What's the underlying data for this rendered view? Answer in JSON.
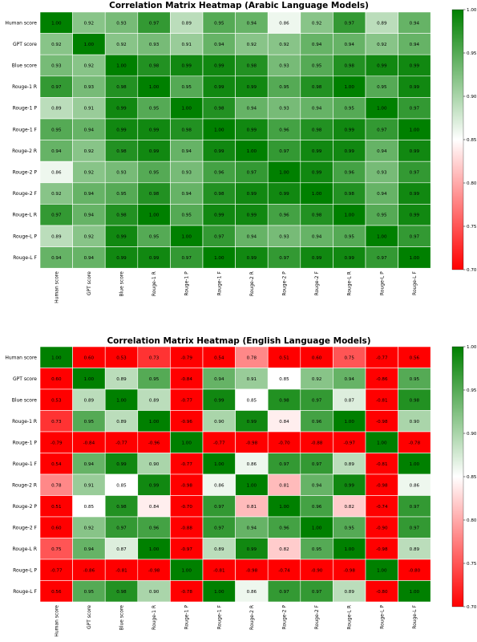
{
  "chart_data": [
    {
      "type": "heatmap",
      "title": "Correlation Matrix Heatmap (Arabic Language Models)",
      "labels": [
        "Human score",
        "GPT score",
        "Blue score",
        "Rouge-1 R",
        "Rouge-1 P",
        "Rouge-1 F",
        "Rouge-2 R",
        "Rouge-2 P",
        "Rouge-2 F",
        "Rouge-L R",
        "Rouge-L P",
        "Rouge-L F"
      ],
      "x_tick_labels": [
        "Human score",
        "GPT score",
        "Blue score",
        "Rouge-1 R",
        "Rouge-1 P",
        "Rouge-1 F",
        "Rouge-2 R",
        "Rouge-2 P",
        "Rouge-2 F",
        "Rouge-L R",
        "Rouge-L P",
        "Rouge-L F"
      ],
      "matrix": [
        [
          1.0,
          0.92,
          0.93,
          0.97,
          0.89,
          0.95,
          0.94,
          0.86,
          0.92,
          0.97,
          0.89,
          0.94
        ],
        [
          0.92,
          1.0,
          0.92,
          0.93,
          0.91,
          0.94,
          0.92,
          0.92,
          0.94,
          0.94,
          0.92,
          0.94
        ],
        [
          0.93,
          0.92,
          1.0,
          0.98,
          0.99,
          0.99,
          0.98,
          0.93,
          0.95,
          0.98,
          0.99,
          0.99
        ],
        [
          0.97,
          0.93,
          0.98,
          1.0,
          0.95,
          0.99,
          0.99,
          0.95,
          0.98,
          1.0,
          0.95,
          0.99
        ],
        [
          0.89,
          0.91,
          0.99,
          0.95,
          1.0,
          0.98,
          0.94,
          0.93,
          0.94,
          0.95,
          1.0,
          0.97
        ],
        [
          0.95,
          0.94,
          0.99,
          0.99,
          0.98,
          1.0,
          0.99,
          0.96,
          0.98,
          0.99,
          0.97,
          1.0
        ],
        [
          0.94,
          0.92,
          0.98,
          0.99,
          0.94,
          0.99,
          1.0,
          0.97,
          0.99,
          0.99,
          0.94,
          0.99
        ],
        [
          0.86,
          0.92,
          0.93,
          0.95,
          0.93,
          0.96,
          0.97,
          1.0,
          0.99,
          0.96,
          0.93,
          0.97
        ],
        [
          0.92,
          0.94,
          0.95,
          0.98,
          0.94,
          0.98,
          0.99,
          0.99,
          1.0,
          0.98,
          0.94,
          0.99
        ],
        [
          0.97,
          0.94,
          0.98,
          1.0,
          0.95,
          0.99,
          0.99,
          0.96,
          0.98,
          1.0,
          0.95,
          0.99
        ],
        [
          0.89,
          0.92,
          0.99,
          0.95,
          1.0,
          0.97,
          0.94,
          0.93,
          0.94,
          0.95,
          1.0,
          0.97
        ],
        [
          0.94,
          0.94,
          0.99,
          0.99,
          0.97,
          1.0,
          0.99,
          0.97,
          0.99,
          0.99,
          0.97,
          1.0
        ]
      ],
      "vmin": 0.7,
      "vmax": 1.0,
      "colorbar_ticks": [
        "0.70",
        "0.75",
        "0.80",
        "0.85",
        "0.90",
        "0.95",
        "1.00"
      ],
      "colormap": [
        "#ff0000",
        "#ffffff",
        "#008000"
      ]
    },
    {
      "type": "heatmap",
      "title": "Correlation Matrix Heatmap (English Language Models)",
      "labels": [
        "Human score",
        "GPT score",
        "Blue score",
        "Rouge-1 R",
        "Rouge-1 P",
        "Rouge-1 F",
        "Rouge-2 R",
        "Rouge-2 P",
        "Rouge-2 F",
        "Rouge-L R",
        "Rouge-L P",
        "Rouge-L F"
      ],
      "x_tick_labels": [
        "Human score",
        "GPT score",
        "Blue score",
        "Rouge-1 R",
        "Rouge-1 P",
        "Rouge-1 F",
        "Rouge-2 R",
        "Rouge-2 P",
        "Rouge-2 F",
        "Rouge-L R",
        "Rouge-L P",
        "Rouge-L F"
      ],
      "matrix": [
        [
          1.0,
          0.6,
          0.53,
          0.73,
          -0.79,
          0.54,
          0.78,
          0.51,
          0.6,
          0.75,
          -0.77,
          0.56
        ],
        [
          0.6,
          1.0,
          0.89,
          0.95,
          -0.84,
          0.94,
          0.91,
          0.85,
          0.92,
          0.94,
          -0.86,
          0.95
        ],
        [
          0.53,
          0.89,
          1.0,
          0.89,
          -0.77,
          0.99,
          0.85,
          0.98,
          0.97,
          0.87,
          -0.81,
          0.98
        ],
        [
          0.73,
          0.95,
          0.89,
          1.0,
          -0.96,
          0.9,
          0.99,
          0.84,
          0.96,
          1.0,
          -0.98,
          0.9
        ],
        [
          -0.79,
          -0.84,
          -0.77,
          -0.96,
          1.0,
          -0.77,
          -0.98,
          -0.7,
          -0.88,
          -0.97,
          1.0,
          -0.78
        ],
        [
          0.54,
          0.94,
          0.99,
          0.9,
          -0.77,
          1.0,
          0.86,
          0.97,
          0.97,
          0.89,
          -0.81,
          1.0
        ],
        [
          0.78,
          0.91,
          0.85,
          0.99,
          -0.98,
          0.86,
          1.0,
          0.81,
          0.94,
          0.99,
          -0.98,
          0.86
        ],
        [
          0.51,
          0.85,
          0.98,
          0.84,
          -0.7,
          0.97,
          0.81,
          1.0,
          0.96,
          0.82,
          -0.74,
          0.97
        ],
        [
          0.6,
          0.92,
          0.97,
          0.96,
          -0.88,
          0.97,
          0.94,
          0.96,
          1.0,
          0.95,
          -0.9,
          0.97
        ],
        [
          0.75,
          0.94,
          0.87,
          1.0,
          -0.97,
          0.89,
          0.99,
          0.82,
          0.95,
          1.0,
          -0.98,
          0.89
        ],
        [
          -0.77,
          -0.86,
          -0.81,
          -0.98,
          1.0,
          -0.81,
          -0.98,
          -0.74,
          -0.9,
          -0.98,
          1.0,
          -0.8
        ],
        [
          0.56,
          0.95,
          0.98,
          0.9,
          -0.78,
          1.0,
          0.86,
          0.97,
          0.97,
          0.89,
          -0.8,
          1.0
        ]
      ],
      "vmin": 0.7,
      "vmax": 1.0,
      "colorbar_ticks": [
        "0.70",
        "0.75",
        "0.80",
        "0.85",
        "0.90",
        "0.95",
        "1.00"
      ],
      "colormap": [
        "#ff0000",
        "#ffffff",
        "#008000"
      ]
    }
  ]
}
